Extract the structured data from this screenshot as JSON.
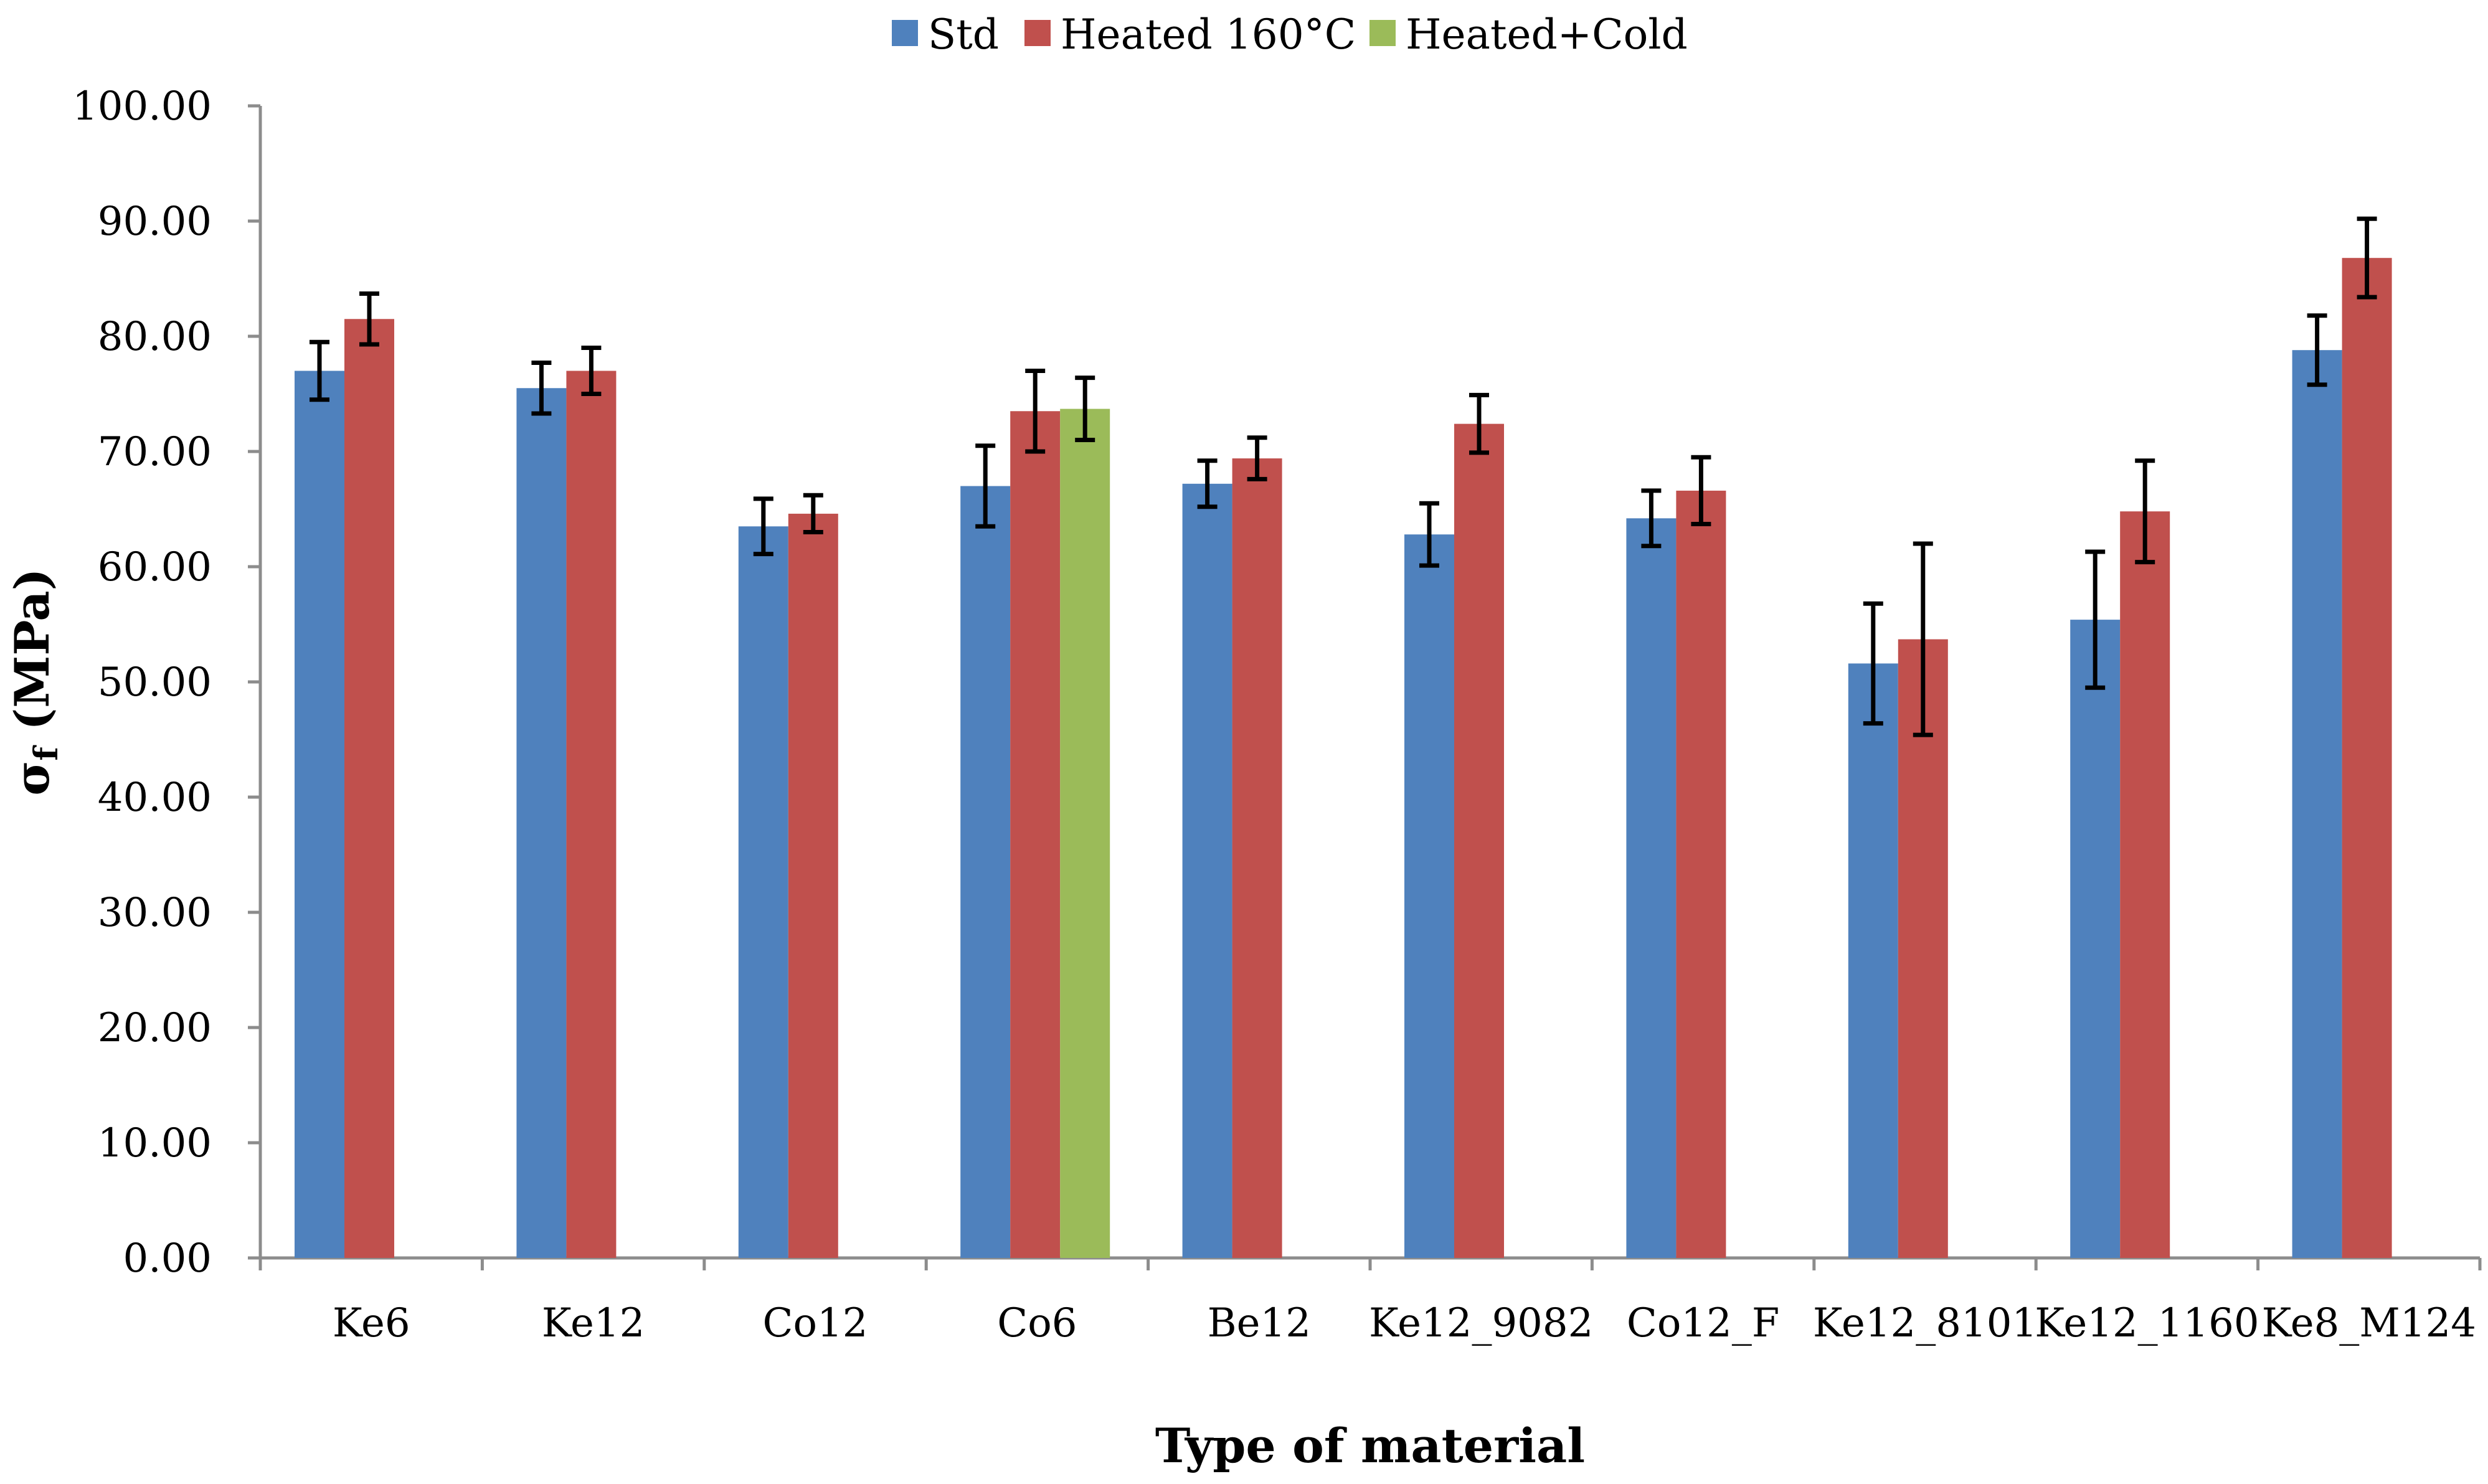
{
  "chart_data": {
    "type": "bar",
    "title": "",
    "xlabel": "Type of material",
    "ylabel_main": "σ",
    "ylabel_sub": "f",
    "ylabel_unit": " (MPa)",
    "ylim": [
      0,
      100
    ],
    "y_ticks": [
      "0.00",
      "10.00",
      "20.00",
      "30.00",
      "40.00",
      "50.00",
      "60.00",
      "70.00",
      "80.00",
      "90.00",
      "100.00"
    ],
    "y_tick_values": [
      0,
      10,
      20,
      30,
      40,
      50,
      60,
      70,
      80,
      90,
      100
    ],
    "grid": false,
    "legend_position": "top-center",
    "categories": [
      "Ke6",
      "Ke12",
      "Co12",
      "Co6",
      "Be12",
      "Ke12_9082",
      "Co12_F",
      "Ke12_8101",
      "Ke12_1160",
      "Ke8_M124"
    ],
    "series": [
      {
        "name": "Std",
        "color": "#4F81BD",
        "values": [
          77.0,
          75.5,
          63.5,
          67.0,
          67.2,
          62.8,
          64.2,
          51.6,
          55.4,
          78.8
        ],
        "errors": [
          2.5,
          2.2,
          2.4,
          3.5,
          2.0,
          2.7,
          2.4,
          5.2,
          5.9,
          3.0
        ]
      },
      {
        "name": "Heated 160°C",
        "color": "#C0504D",
        "values": [
          81.5,
          77.0,
          64.6,
          73.5,
          69.4,
          72.4,
          66.6,
          53.7,
          64.8,
          86.8
        ],
        "errors": [
          2.2,
          2.0,
          1.6,
          3.5,
          1.8,
          2.5,
          2.9,
          8.3,
          4.4,
          3.4
        ]
      },
      {
        "name": "Heated+Cold",
        "color": "#9BBB59",
        "values": [
          null,
          null,
          null,
          73.7,
          null,
          null,
          null,
          null,
          null,
          null
        ],
        "errors": [
          null,
          null,
          null,
          2.7,
          null,
          null,
          null,
          null,
          null,
          null
        ]
      }
    ]
  }
}
